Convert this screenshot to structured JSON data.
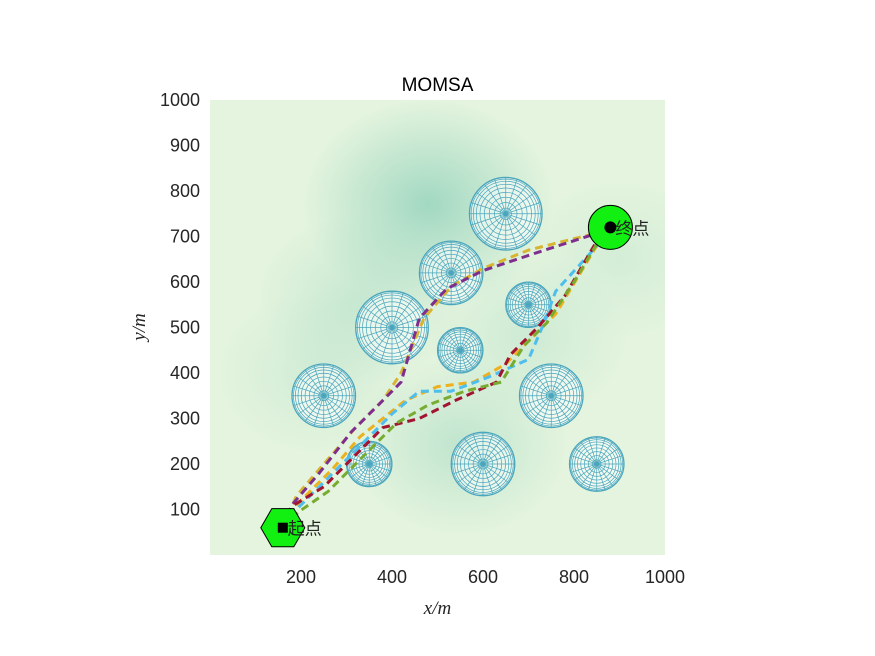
{
  "chart_data": {
    "type": "line",
    "title": "MOMSA",
    "xlabel": "x/m",
    "ylabel": "y/m",
    "xlim": [
      0,
      1000
    ],
    "ylim": [
      0,
      1000
    ],
    "xticks": [
      200,
      400,
      600,
      800,
      1000
    ],
    "yticks": [
      100,
      200,
      300,
      400,
      500,
      600,
      700,
      800,
      900,
      1000
    ],
    "grid": false,
    "background": {
      "type": "terrain-heatmap",
      "colors": {
        "low": "#e4f4de",
        "high": "#8ccfb8"
      },
      "peaks": [
        {
          "x": 480,
          "y": 770,
          "strength": 1.0
        },
        {
          "x": 550,
          "y": 240,
          "strength": 0.55
        },
        {
          "x": 330,
          "y": 560,
          "strength": 0.45
        },
        {
          "x": 700,
          "y": 480,
          "strength": 0.35
        },
        {
          "x": 230,
          "y": 400,
          "strength": 0.3
        },
        {
          "x": 900,
          "y": 650,
          "strength": 0.25
        }
      ]
    },
    "obstacles": [
      {
        "x": 650,
        "y": 750,
        "r": 80
      },
      {
        "x": 530,
        "y": 620,
        "r": 70
      },
      {
        "x": 400,
        "y": 500,
        "r": 80
      },
      {
        "x": 700,
        "y": 550,
        "r": 50
      },
      {
        "x": 550,
        "y": 450,
        "r": 50
      },
      {
        "x": 250,
        "y": 350,
        "r": 70
      },
      {
        "x": 750,
        "y": 350,
        "r": 70
      },
      {
        "x": 350,
        "y": 200,
        "r": 50
      },
      {
        "x": 600,
        "y": 200,
        "r": 70
      },
      {
        "x": 850,
        "y": 200,
        "r": 60
      }
    ],
    "start": {
      "x": 160,
      "y": 60,
      "label": "起点"
    },
    "end": {
      "x": 880,
      "y": 720,
      "label": "终点"
    },
    "series": [
      {
        "color": "#d8b530",
        "values": [
          [
            160,
            60
          ],
          [
            190,
            130
          ],
          [
            250,
            200
          ],
          [
            320,
            280
          ],
          [
            380,
            340
          ],
          [
            420,
            400
          ],
          [
            470,
            520
          ],
          [
            530,
            590
          ],
          [
            600,
            630
          ],
          [
            700,
            670
          ],
          [
            860,
            710
          ],
          [
            880,
            720
          ]
        ]
      },
      {
        "color": "#7e2f8e",
        "values": [
          [
            160,
            60
          ],
          [
            180,
            110
          ],
          [
            240,
            180
          ],
          [
            310,
            270
          ],
          [
            370,
            330
          ],
          [
            420,
            380
          ],
          [
            460,
            520
          ],
          [
            520,
            585
          ],
          [
            600,
            625
          ],
          [
            720,
            665
          ],
          [
            860,
            710
          ],
          [
            880,
            720
          ]
        ]
      },
      {
        "color": "#edb120",
        "values": [
          [
            160,
            60
          ],
          [
            200,
            120
          ],
          [
            270,
            190
          ],
          [
            330,
            260
          ],
          [
            430,
            340
          ],
          [
            500,
            370
          ],
          [
            580,
            380
          ],
          [
            650,
            420
          ],
          [
            700,
            470
          ],
          [
            760,
            530
          ],
          [
            850,
            680
          ],
          [
            880,
            720
          ]
        ]
      },
      {
        "color": "#4dbeee",
        "values": [
          [
            160,
            60
          ],
          [
            190,
            100
          ],
          [
            250,
            160
          ],
          [
            320,
            230
          ],
          [
            400,
            310
          ],
          [
            460,
            360
          ],
          [
            530,
            360
          ],
          [
            610,
            390
          ],
          [
            700,
            430
          ],
          [
            730,
            500
          ],
          [
            760,
            580
          ],
          [
            860,
            690
          ],
          [
            880,
            720
          ]
        ]
      },
      {
        "color": "#a2142f",
        "values": [
          [
            160,
            60
          ],
          [
            185,
            110
          ],
          [
            250,
            150
          ],
          [
            320,
            220
          ],
          [
            380,
            280
          ],
          [
            460,
            300
          ],
          [
            540,
            340
          ],
          [
            630,
            380
          ],
          [
            660,
            440
          ],
          [
            720,
            500
          ],
          [
            780,
            570
          ],
          [
            850,
            690
          ],
          [
            880,
            720
          ]
        ]
      },
      {
        "color": "#77ac30",
        "values": [
          [
            160,
            60
          ],
          [
            195,
            95
          ],
          [
            260,
            140
          ],
          [
            330,
            210
          ],
          [
            410,
            290
          ],
          [
            480,
            330
          ],
          [
            560,
            360
          ],
          [
            640,
            380
          ],
          [
            690,
            460
          ],
          [
            740,
            510
          ],
          [
            800,
            600
          ],
          [
            860,
            700
          ],
          [
            880,
            720
          ]
        ]
      }
    ]
  }
}
